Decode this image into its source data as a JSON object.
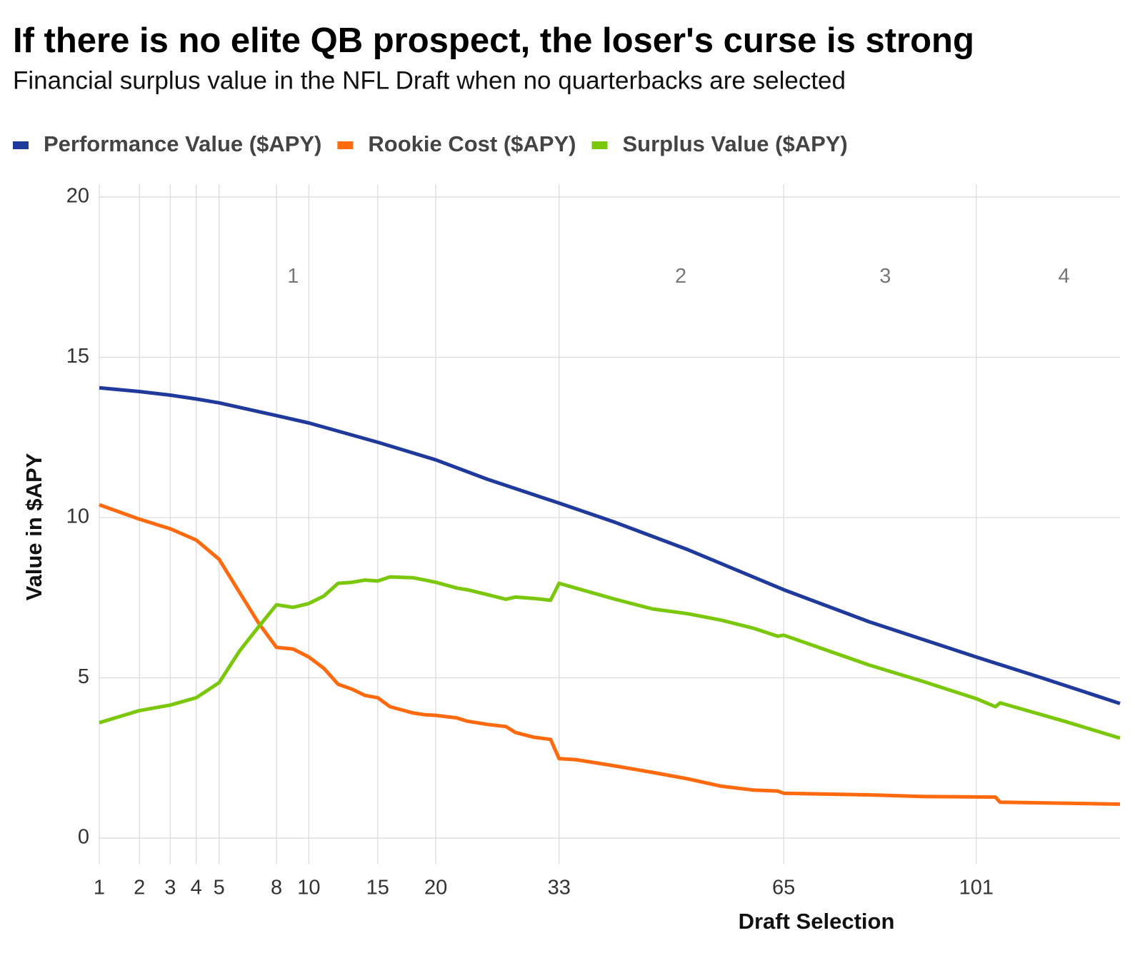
{
  "chart_data": {
    "type": "line",
    "title": "If there is no elite QB prospect, the loser's curse is strong",
    "subtitle": "Financial surplus value in the NFL Draft when no quarterbacks are selected",
    "xlabel": "Draft Selection",
    "ylabel": "Value in $APY",
    "xscale": "sqrt",
    "grid": true,
    "legend": "top",
    "xlim": [
      1,
      133
    ],
    "ylim": [
      -0.8,
      20.4
    ],
    "xticks": [
      1,
      2,
      3,
      4,
      5,
      8,
      10,
      15,
      20,
      33,
      65,
      101
    ],
    "yticks": [
      0,
      5,
      10,
      15,
      20
    ],
    "annotations": [
      {
        "text": "1",
        "x": 9,
        "y": 17.5
      },
      {
        "text": "2",
        "x": 49,
        "y": 17.5
      },
      {
        "text": "3",
        "x": 83,
        "y": 17.5
      },
      {
        "text": "4",
        "x": 120,
        "y": 17.5
      }
    ],
    "series": [
      {
        "name": "Performance Value ($APY)",
        "color": "#1f3a9a",
        "x": [
          1,
          2,
          3,
          4,
          5,
          8,
          10,
          15,
          20,
          25,
          33,
          40,
          50,
          65,
          80,
          101,
          115,
          133
        ],
        "values": [
          14.05,
          13.93,
          13.82,
          13.7,
          13.58,
          13.18,
          12.95,
          12.35,
          11.8,
          11.2,
          10.45,
          9.85,
          9.0,
          7.75,
          6.75,
          5.65,
          5.0,
          4.2
        ]
      },
      {
        "name": "Rookie Cost ($APY)",
        "color": "#ff6a0e",
        "x": [
          1,
          2,
          3,
          4,
          5,
          6,
          7,
          8,
          9,
          10,
          11,
          12,
          13,
          14,
          15,
          16,
          17,
          18,
          19,
          20,
          22,
          23,
          25,
          27,
          28,
          30,
          32,
          33,
          35,
          40,
          45,
          50,
          55,
          60,
          64,
          65,
          80,
          90,
          105,
          106,
          133
        ],
        "values": [
          10.4,
          9.95,
          9.65,
          9.3,
          8.7,
          7.65,
          6.7,
          5.95,
          5.9,
          5.65,
          5.3,
          4.8,
          4.65,
          4.45,
          4.38,
          4.1,
          4.0,
          3.9,
          3.85,
          3.83,
          3.75,
          3.65,
          3.55,
          3.48,
          3.3,
          3.15,
          3.08,
          2.48,
          2.45,
          2.25,
          2.05,
          1.85,
          1.62,
          1.5,
          1.47,
          1.4,
          1.35,
          1.3,
          1.28,
          1.12,
          1.06
        ]
      },
      {
        "name": "Surplus Value ($APY)",
        "color": "#7ac70c",
        "x": [
          1,
          2,
          3,
          4,
          5,
          6,
          7,
          8,
          9,
          10,
          11,
          12,
          13,
          14,
          15,
          16,
          18,
          19,
          20,
          22,
          23,
          25,
          27,
          28,
          30,
          32,
          33,
          35,
          40,
          45,
          50,
          55,
          60,
          64,
          65,
          80,
          90,
          101,
          105,
          106,
          120,
          133
        ],
        "values": [
          3.6,
          3.98,
          4.15,
          4.38,
          4.85,
          5.85,
          6.6,
          7.28,
          7.2,
          7.32,
          7.55,
          7.95,
          7.98,
          8.05,
          8.02,
          8.15,
          8.12,
          8.05,
          7.98,
          7.8,
          7.75,
          7.6,
          7.45,
          7.52,
          7.48,
          7.42,
          7.95,
          7.8,
          7.45,
          7.15,
          7.0,
          6.8,
          6.55,
          6.3,
          6.33,
          5.4,
          4.9,
          4.35,
          4.1,
          4.22,
          3.65,
          3.12
        ]
      }
    ]
  }
}
